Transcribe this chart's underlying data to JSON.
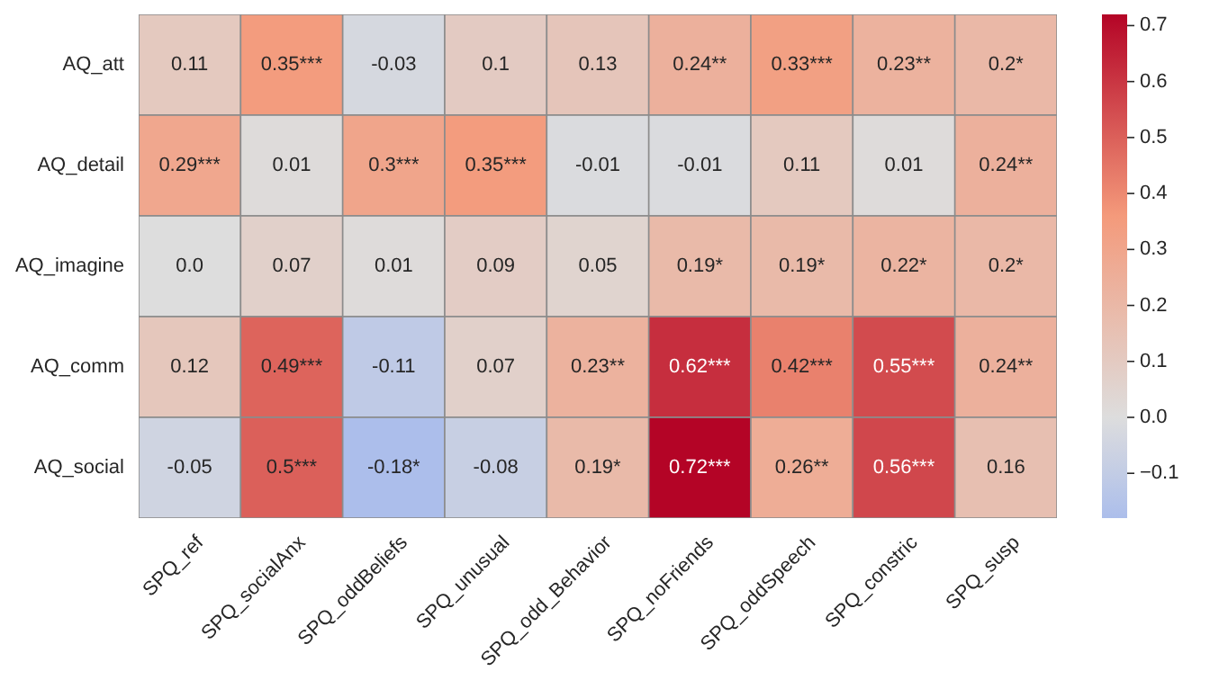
{
  "chart_data": {
    "type": "heatmap",
    "categories": [
      "SPQ_ref",
      "SPQ_socialAnx",
      "SPQ_oddBeliefs",
      "SPQ_unusual",
      "SPQ_odd_Behavior",
      "SPQ_noFriends",
      "SPQ_oddSpeech",
      "SPQ_constric",
      "SPQ_susp"
    ],
    "y_categories": [
      "AQ_att",
      "AQ_detail",
      "AQ_imagine",
      "AQ_comm",
      "AQ_social"
    ],
    "cells": [
      [
        0.11,
        0.35,
        -0.03,
        0.1,
        0.13,
        0.24,
        0.33,
        0.23,
        0.2
      ],
      [
        0.29,
        0.01,
        0.3,
        0.35,
        -0.01,
        -0.01,
        0.11,
        0.01,
        0.24
      ],
      [
        0.0,
        0.07,
        0.01,
        0.09,
        0.05,
        0.19,
        0.19,
        0.22,
        0.2
      ],
      [
        0.12,
        0.49,
        -0.11,
        0.07,
        0.23,
        0.62,
        0.42,
        0.55,
        0.24
      ],
      [
        -0.05,
        0.5,
        -0.18,
        -0.08,
        0.19,
        0.72,
        0.26,
        0.56,
        0.16
      ]
    ],
    "cell_labels": [
      [
        "0.11",
        "0.35***",
        "-0.03",
        "0.1",
        "0.13",
        "0.24**",
        "0.33***",
        "0.23**",
        "0.2*"
      ],
      [
        "0.29***",
        "0.01",
        "0.3***",
        "0.35***",
        "-0.01",
        "-0.01",
        "0.11",
        "0.01",
        "0.24**"
      ],
      [
        "0.0",
        "0.07",
        "0.01",
        "0.09",
        "0.05",
        "0.19*",
        "0.19*",
        "0.22*",
        "0.2*"
      ],
      [
        "0.12",
        "0.49***",
        "-0.11",
        "0.07",
        "0.23**",
        "0.62***",
        "0.42***",
        "0.55***",
        "0.24**"
      ],
      [
        "-0.05",
        "0.5***",
        "-0.18*",
        "-0.08",
        "0.19*",
        "0.72***",
        "0.26**",
        "0.56***",
        "0.16"
      ]
    ],
    "clim": [
      -0.18,
      0.72
    ],
    "cticks": [
      {
        "value": -0.1,
        "label": "−0.1"
      },
      {
        "value": 0,
        "label": "0.0"
      },
      {
        "value": 0.1,
        "label": "0.1"
      },
      {
        "value": 0.2,
        "label": "0.2"
      },
      {
        "value": 0.3,
        "label": "0.3"
      },
      {
        "value": 0.4,
        "label": "0.4"
      },
      {
        "value": 0.5,
        "label": "0.5"
      },
      {
        "value": 0.6,
        "label": "0.6"
      },
      {
        "value": 0.7,
        "label": "0.7"
      }
    ]
  }
}
